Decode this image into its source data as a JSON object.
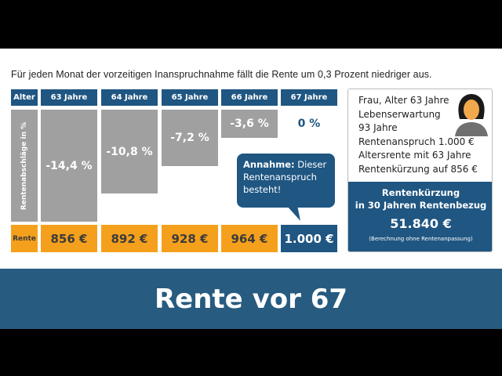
{
  "intro": "Für jeden Monat der vorzeitigen Inanspruchnahme fällt die Rente um 0,3 Prozent niedriger aus.",
  "table": {
    "row_header": "Alter",
    "axis_label": "Rentenabschläge in %",
    "rente_label": "Rente",
    "columns": [
      {
        "age": "63 Jahre",
        "abschlag": "-14,4 %",
        "rente": "856 €",
        "fraction": 1.0
      },
      {
        "age": "64 Jahre",
        "abschlag": "-10,8 %",
        "rente": "892 €",
        "fraction": 0.75
      },
      {
        "age": "65 Jahre",
        "abschlag": "-7,2 %",
        "rente": "928 €",
        "fraction": 0.5
      },
      {
        "age": "66 Jahre",
        "abschlag": "-3,6 %",
        "rente": "964 €",
        "fraction": 0.25
      },
      {
        "age": "67 Jahre",
        "abschlag": "0 %",
        "rente": "1.000 €",
        "fraction": 0
      }
    ]
  },
  "callout": {
    "bold": "Annahme:",
    "text": " Dieser Rentenanspruch besteht!"
  },
  "card": {
    "lines": [
      "Frau, Alter 63 Jahre",
      "Lebenserwartung",
      "93 Jahre",
      "Rentenanspruch 1.000 €",
      "Altersrente mit 63 Jahre",
      "Rentenkürzung auf 856 €"
    ],
    "title1": "Rentenkürzung",
    "title2": "in 30 Jahren Rentenbezug",
    "amount": "51.840 €",
    "note": "(Berechnung ohne Rentenanpassung)"
  },
  "banner": "Rente vor 67",
  "colors": {
    "blue": "#1f5682",
    "orange": "#f5a01c",
    "gray": "#a0a0a0"
  }
}
